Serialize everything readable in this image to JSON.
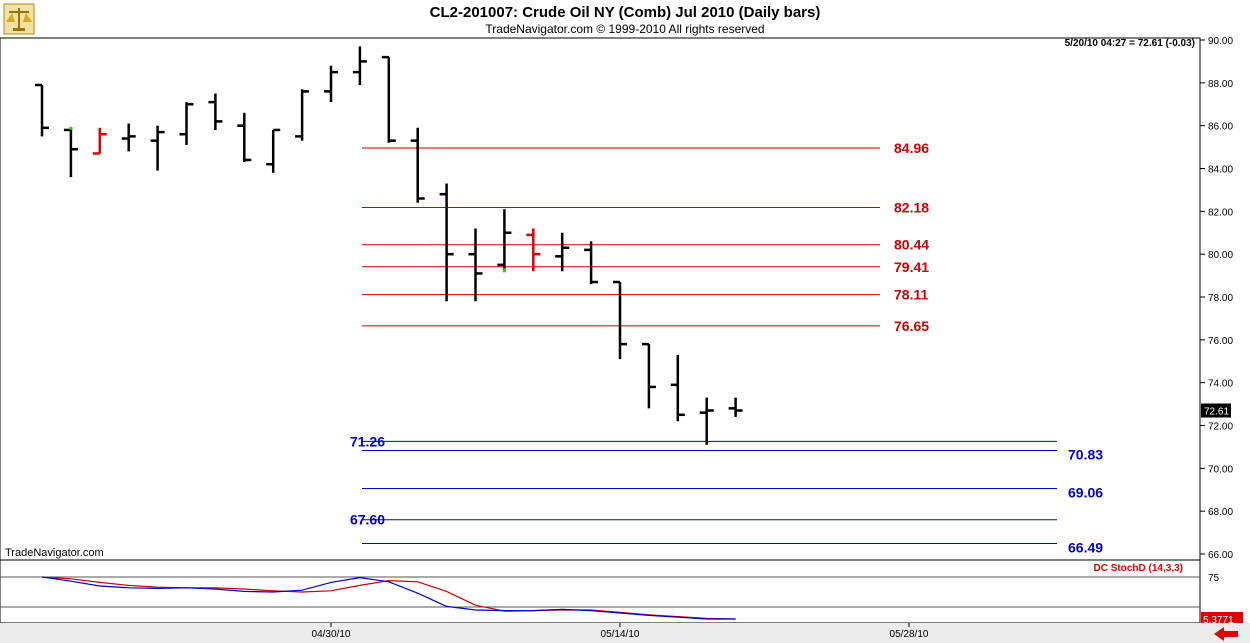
{
  "header": {
    "title": "CL2-201007:  Crude Oil NY (Comb) Jul 2010  (Daily bars)",
    "copyright": "TradeNavigator.com © 1999-2010 All rights reserved",
    "quote": "5/20/10 04:27 = 72.61 (-0.03)",
    "watermark": "TradeNavigator.com",
    "logo_icon": "scales-of-justice-icon"
  },
  "chart_data": [
    {
      "type": "ohlc",
      "panel": "price",
      "ylim": [
        66,
        90
      ],
      "yticks": [
        "90.00",
        "88.00",
        "86.00",
        "84.00",
        "82.00",
        "80.00",
        "78.00",
        "76.00",
        "74.00",
        "72.00",
        "70.00",
        "68.00",
        "66.00"
      ],
      "last_price_label": "72.61",
      "colors": {
        "up_down": "#000000",
        "highlight": "#e00000",
        "marker": "#22cc22"
      },
      "bars": [
        {
          "open": 87.9,
          "high": 87.9,
          "low": 85.5,
          "close": 85.9,
          "color": "black"
        },
        {
          "open": 85.8,
          "high": 85.9,
          "low": 83.6,
          "close": 84.9,
          "color": "black",
          "marker": "high"
        },
        {
          "open": 84.7,
          "high": 85.9,
          "low": 84.7,
          "close": 85.6,
          "color": "red"
        },
        {
          "open": 85.4,
          "high": 86.1,
          "low": 84.8,
          "close": 85.5,
          "color": "black"
        },
        {
          "open": 85.3,
          "high": 86.0,
          "low": 83.9,
          "close": 85.7,
          "color": "black"
        },
        {
          "open": 85.6,
          "high": 87.1,
          "low": 85.1,
          "close": 87.0,
          "color": "black"
        },
        {
          "open": 87.1,
          "high": 87.5,
          "low": 85.8,
          "close": 86.2,
          "color": "black"
        },
        {
          "open": 86.0,
          "high": 86.6,
          "low": 84.3,
          "close": 84.4,
          "color": "black"
        },
        {
          "open": 84.2,
          "high": 85.8,
          "low": 83.8,
          "close": 85.8,
          "color": "black"
        },
        {
          "open": 85.5,
          "high": 87.7,
          "low": 85.3,
          "close": 87.6,
          "color": "black"
        },
        {
          "open": 87.6,
          "high": 88.8,
          "low": 87.1,
          "close": 88.5,
          "color": "black"
        },
        {
          "open": 88.5,
          "high": 89.7,
          "low": 87.9,
          "close": 89.0,
          "color": "black"
        },
        {
          "open": 89.2,
          "high": 89.2,
          "low": 85.2,
          "close": 85.3,
          "color": "black"
        },
        {
          "open": 85.3,
          "high": 85.9,
          "low": 82.4,
          "close": 82.6,
          "color": "black"
        },
        {
          "open": 82.8,
          "high": 83.3,
          "low": 77.8,
          "close": 80.0,
          "color": "black"
        },
        {
          "open": 80.0,
          "high": 81.2,
          "low": 77.8,
          "close": 79.1,
          "color": "black"
        },
        {
          "open": 79.5,
          "high": 82.1,
          "low": 79.2,
          "close": 81.0,
          "color": "black",
          "marker": "low"
        },
        {
          "open": 80.9,
          "high": 81.2,
          "low": 79.2,
          "close": 80.0,
          "color": "red"
        },
        {
          "open": 79.9,
          "high": 81.0,
          "low": 79.2,
          "close": 80.3,
          "color": "black"
        },
        {
          "open": 80.2,
          "high": 80.6,
          "low": 78.6,
          "close": 78.7,
          "color": "black"
        },
        {
          "open": 78.7,
          "high": 78.7,
          "low": 75.1,
          "close": 75.8,
          "color": "black"
        },
        {
          "open": 75.8,
          "high": 75.8,
          "low": 72.8,
          "close": 73.8,
          "color": "black"
        },
        {
          "open": 73.9,
          "high": 75.3,
          "low": 72.2,
          "close": 72.5,
          "color": "black"
        },
        {
          "open": 72.6,
          "high": 73.3,
          "low": 71.1,
          "close": 72.7,
          "color": "black"
        },
        {
          "open": 72.8,
          "high": 73.3,
          "low": 72.4,
          "close": 72.7,
          "color": "black"
        }
      ],
      "levels": [
        {
          "value": 84.96,
          "label": "84.96",
          "color": "#cc0000",
          "label_side": "right"
        },
        {
          "value": 82.18,
          "label": "82.18",
          "color": "#cc0000",
          "label_side": "right"
        },
        {
          "value": 80.44,
          "label": "80.44",
          "color": "#cc0000",
          "label_side": "right"
        },
        {
          "value": 79.41,
          "label": "79.41",
          "color": "#cc0000",
          "label_side": "right"
        },
        {
          "value": 78.11,
          "label": "78.11",
          "color": "#cc0000",
          "label_side": "right"
        },
        {
          "value": 76.65,
          "label": "76.65",
          "color": "#cc0000",
          "label_side": "right"
        },
        {
          "value": 71.26,
          "label": "71.26",
          "color": "#0000cc",
          "label_side": "left"
        },
        {
          "value": 70.83,
          "label": "70.83",
          "color": "#0000cc",
          "label_side": "right"
        },
        {
          "value": 69.06,
          "label": "69.06",
          "color": "#0000cc",
          "label_side": "right"
        },
        {
          "value": 67.6,
          "label": "67.60",
          "color": "#0000cc",
          "label_side": "left"
        },
        {
          "value": 66.49,
          "label": "66.49",
          "color": "#0000cc",
          "label_side": "right"
        }
      ],
      "x_tick_labels": [
        {
          "bar": 10,
          "label": "04/30/10"
        },
        {
          "bar": 20,
          "label": "05/14/10"
        },
        {
          "bar": 30,
          "label": "05/28/10"
        }
      ]
    },
    {
      "type": "line",
      "panel": "indicator",
      "title": "DC StochD (14,3,3)",
      "ylim": [
        0,
        100
      ],
      "reference_lines": [
        75,
        25
      ],
      "ytick_label": "75",
      "last_value_label": "5.3771",
      "series": [
        {
          "color": "#cc0000",
          "values": [
            75,
            72,
            66,
            61,
            58,
            57,
            57,
            55,
            52,
            50,
            52,
            61,
            69,
            67,
            51,
            28,
            18,
            19,
            20,
            20,
            16,
            12,
            9,
            6,
            5
          ]
        },
        {
          "color": "#0000cc",
          "values": [
            75,
            68,
            60,
            57,
            56,
            57,
            55,
            51,
            50,
            53,
            66,
            74,
            67,
            48,
            26,
            20,
            19,
            19,
            21,
            19,
            15,
            11,
            8,
            5,
            5
          ]
        }
      ]
    }
  ]
}
